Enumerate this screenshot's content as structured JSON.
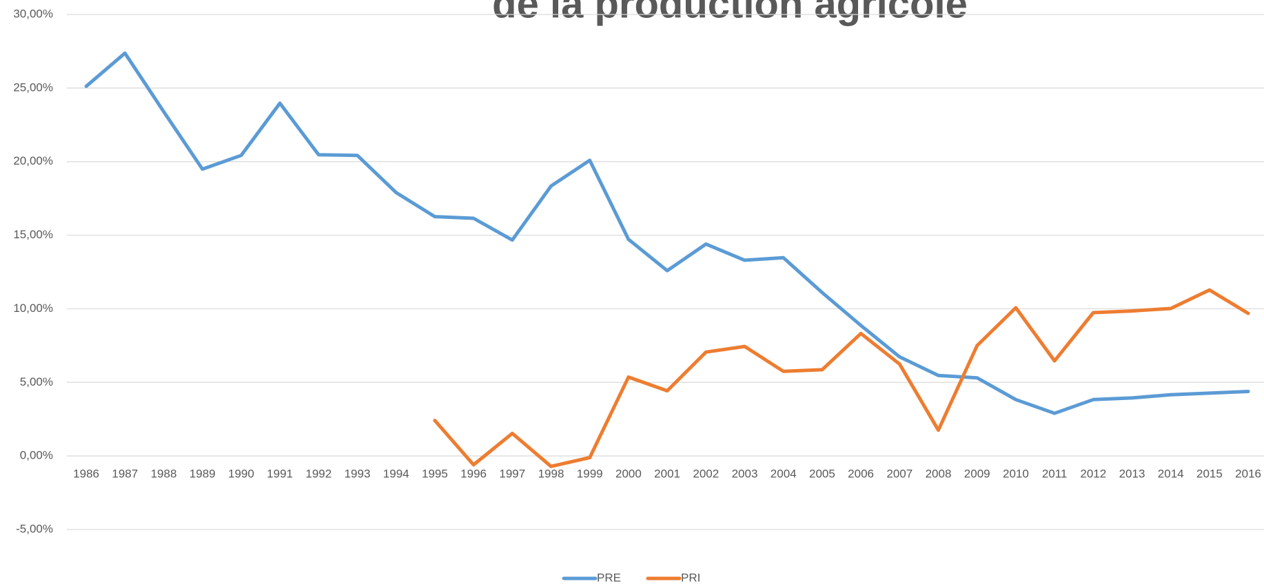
{
  "chart_data": {
    "type": "line",
    "title": "de la production agricole",
    "categories": [
      "1986",
      "1987",
      "1988",
      "1989",
      "1990",
      "1991",
      "1992",
      "1993",
      "1994",
      "1995",
      "1996",
      "1997",
      "1998",
      "1999",
      "2000",
      "2001",
      "2002",
      "2003",
      "2004",
      "2005",
      "2006",
      "2007",
      "2008",
      "2009",
      "2010",
      "2011",
      "2012",
      "2013",
      "2014",
      "2015",
      "2016"
    ],
    "series": [
      {
        "name": "PRE",
        "color": "#5b9bd5",
        "values": [
          25.12,
          27.37,
          23.4,
          19.49,
          20.42,
          23.97,
          20.47,
          20.42,
          17.9,
          16.26,
          16.15,
          14.67,
          18.34,
          20.09,
          14.72,
          12.59,
          14.4,
          13.3,
          13.47,
          11.1,
          8.87,
          6.73,
          5.47,
          5.31,
          3.83,
          2.9,
          3.83,
          3.94,
          4.16,
          4.27,
          4.38
        ]
      },
      {
        "name": "PRI",
        "color": "#ed7d31",
        "values": [
          null,
          null,
          null,
          null,
          null,
          null,
          null,
          null,
          null,
          2.41,
          -0.6,
          1.53,
          -0.71,
          -0.11,
          5.36,
          4.43,
          7.06,
          7.44,
          5.75,
          5.86,
          8.32,
          6.24,
          1.75,
          7.5,
          10.07,
          6.46,
          9.74,
          9.85,
          10.02,
          11.28,
          9.69
        ]
      }
    ],
    "ylim": [
      -5,
      30
    ],
    "yticks": [
      {
        "value": -5,
        "label": "-5,00%"
      },
      {
        "value": 0,
        "label": "0,00%"
      },
      {
        "value": 5,
        "label": "5,00%"
      },
      {
        "value": 10,
        "label": "10,00%"
      },
      {
        "value": 15,
        "label": "15,00%"
      },
      {
        "value": 20,
        "label": "20,00%"
      },
      {
        "value": 25,
        "label": "25,00%"
      },
      {
        "value": 30,
        "label": "30,00%"
      }
    ],
    "grid": true,
    "legend": "bottom"
  }
}
